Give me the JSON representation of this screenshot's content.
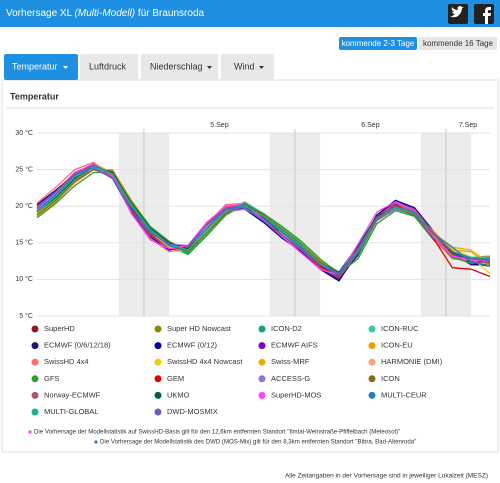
{
  "header": {
    "title": "Vorhersage XL",
    "title_model": "(Multi-Modell)",
    "location": "für Braunsroda"
  },
  "range_buttons": [
    "kommende 2-3 Tage",
    "kommende 16 Tage"
  ],
  "tabs": [
    "Temperatur",
    "Luftdruck",
    "Niederschlag",
    "Wind"
  ],
  "chart_data": {
    "type": "line",
    "title": "Temperatur",
    "x": [
      7,
      10,
      13,
      16,
      19,
      22,
      25,
      28,
      31,
      34,
      37,
      40,
      43,
      46,
      49,
      52,
      55,
      58,
      61,
      64,
      67,
      70,
      73,
      76,
      79
    ],
    "xlim": [
      7,
      79
    ],
    "xticks": [
      {
        "value": 36,
        "label": "5.Sep"
      },
      {
        "value": 60,
        "label": "6.Sep"
      },
      {
        "value": 84,
        "label": "7.Sep"
      }
    ],
    "day_lines": [
      24,
      48,
      72
    ],
    "shaded_ranges": [
      [
        20,
        28
      ],
      [
        44,
        52
      ],
      [
        68,
        76
      ]
    ],
    "ylim": [
      5,
      30
    ],
    "yticks": [
      {
        "value": 30,
        "label": "30 °C"
      },
      {
        "value": 25,
        "label": "25 °C"
      },
      {
        "value": 20,
        "label": "20 °C"
      },
      {
        "value": 15,
        "label": "15 °C"
      },
      {
        "value": 10,
        "label": "10 °C"
      },
      {
        "value": 5,
        "label": "5 °C"
      }
    ],
    "grid": true,
    "legend": "bottom",
    "series": [
      {
        "name": "SuperHD",
        "color": "#8b1a1a",
        "values": [
          19.8,
          21.8,
          24.5,
          25.8,
          24.2,
          19.6,
          16.2,
          14.6,
          14.3,
          17.4,
          19.8,
          20.2,
          18.2,
          16.0,
          14.2,
          11.8,
          10.2,
          13.6,
          18.2,
          20.2,
          19.4,
          15.8,
          13.2,
          12.4,
          12.8
        ]
      },
      {
        "name": "Super HD Nowcast",
        "color": "#8b8b00",
        "values": [
          19.2,
          21.2,
          23.8,
          25.4,
          24.6,
          20.2,
          16.8,
          14.8,
          14.2,
          16.8,
          19.2,
          19.8,
          18.6,
          16.6,
          14.6,
          12.2,
          10.8,
          14.2,
          18.8,
          20.4,
          19.2,
          16.2,
          13.8,
          12.6,
          12.2
        ]
      },
      {
        "name": "ICON-D2",
        "color": "#1aa37a",
        "values": [
          18.8,
          20.8,
          23.5,
          25.2,
          24.8,
          20.4,
          17.0,
          15.0,
          13.6,
          16.4,
          19.0,
          20.4,
          18.8,
          16.8,
          14.8,
          12.4,
          10.4,
          13.2,
          18.0,
          19.8,
          18.6,
          15.4,
          13.0,
          12.8,
          13.0
        ]
      },
      {
        "name": "ICON-RUC",
        "color": "#2ecc9a",
        "values": [
          19.0,
          21.0,
          23.6,
          25.0,
          24.4,
          20.0,
          16.6,
          14.4,
          13.4,
          16.2,
          19.2,
          20.6,
          19.0,
          17.0,
          15.0,
          12.6,
          10.6,
          13.8,
          18.4,
          19.6,
          18.8,
          15.6,
          13.4,
          13.0,
          13.2
        ]
      },
      {
        "name": "ECMWF (0/6/12/18)",
        "color": "#1a1a6b",
        "values": [
          20.0,
          22.0,
          24.2,
          25.6,
          24.0,
          19.4,
          16.0,
          14.2,
          14.4,
          17.6,
          20.0,
          20.0,
          18.0,
          15.8,
          14.0,
          11.6,
          10.0,
          13.4,
          18.6,
          20.6,
          19.6,
          16.4,
          13.6,
          12.0,
          12.0
        ]
      },
      {
        "name": "ECMWF (0/12)",
        "color": "#0000a0",
        "values": [
          20.2,
          22.2,
          24.4,
          25.4,
          23.8,
          19.2,
          15.8,
          14.0,
          14.6,
          17.8,
          19.8,
          19.6,
          17.8,
          15.6,
          13.8,
          11.4,
          9.8,
          13.8,
          18.8,
          20.8,
          19.8,
          16.6,
          13.8,
          12.2,
          11.8
        ]
      },
      {
        "name": "ECMWF AIFS",
        "color": "#7b00d4",
        "values": [
          19.4,
          21.6,
          24.2,
          25.2,
          24.2,
          20.4,
          16.8,
          14.6,
          14.0,
          16.8,
          19.4,
          20.2,
          18.6,
          16.4,
          14.4,
          12.0,
          10.6,
          14.4,
          18.6,
          19.8,
          18.8,
          16.0,
          13.4,
          12.6,
          12.4
        ]
      },
      {
        "name": "ICON-EU",
        "color": "#e8a000",
        "values": [
          18.6,
          20.6,
          23.2,
          25.0,
          25.0,
          20.8,
          17.2,
          15.2,
          14.0,
          16.6,
          19.0,
          20.2,
          18.8,
          16.8,
          14.8,
          12.6,
          11.0,
          13.6,
          18.0,
          19.6,
          19.0,
          16.6,
          14.0,
          13.8,
          11.8
        ]
      },
      {
        "name": "SwissHD 4x4",
        "color": "#ff6a6a",
        "values": [
          20.4,
          22.6,
          25.0,
          26.0,
          24.0,
          19.0,
          15.6,
          13.8,
          14.2,
          17.6,
          20.2,
          20.4,
          18.4,
          16.2,
          14.2,
          12.0,
          10.4,
          14.0,
          18.6,
          20.4,
          19.0,
          15.6,
          12.8,
          12.6,
          13.2
        ]
      },
      {
        "name": "SwissHD 4x4 Nowcast",
        "color": "#f0d000",
        "values": [
          19.6,
          21.8,
          24.4,
          25.6,
          24.4,
          20.0,
          16.4,
          14.4,
          14.2,
          17.2,
          19.6,
          20.0,
          18.4,
          16.4,
          14.4,
          12.0,
          10.6,
          14.2,
          18.4,
          20.0,
          19.0,
          16.2,
          14.2,
          13.0,
          10.8
        ]
      },
      {
        "name": "Swiss-MRF",
        "color": "#f0b000",
        "values": [
          19.0,
          21.4,
          24.0,
          25.8,
          24.6,
          20.2,
          16.6,
          14.6,
          13.8,
          16.6,
          19.4,
          20.2,
          18.6,
          16.6,
          14.6,
          12.2,
          10.8,
          14.4,
          18.6,
          19.8,
          19.2,
          16.4,
          14.4,
          14.0,
          12.2
        ]
      },
      {
        "name": "HARMONIE (DMI)",
        "color": "#ffa07a",
        "values": [
          19.6,
          21.6,
          24.0,
          25.2,
          24.2,
          19.8,
          16.4,
          14.6,
          14.6,
          17.2,
          19.6,
          19.8,
          18.2,
          16.2,
          14.4,
          12.2,
          10.6,
          14.0,
          18.2,
          19.8,
          19.0,
          16.0,
          13.6,
          12.8,
          12.6
        ]
      },
      {
        "name": "GFS",
        "color": "#2e9e2e",
        "values": [
          18.4,
          20.4,
          22.8,
          24.6,
          24.6,
          20.6,
          17.2,
          15.2,
          13.4,
          16.0,
          18.8,
          20.2,
          19.0,
          17.2,
          15.2,
          12.8,
          10.8,
          12.8,
          17.6,
          19.4,
          18.6,
          15.8,
          13.0,
          12.2,
          12.4
        ]
      },
      {
        "name": "GEM",
        "color": "#e00000",
        "values": [
          19.8,
          22.0,
          24.6,
          25.6,
          24.4,
          19.8,
          16.2,
          14.2,
          14.2,
          17.6,
          19.8,
          20.2,
          18.4,
          16.0,
          14.0,
          11.8,
          10.4,
          14.4,
          18.6,
          20.2,
          19.0,
          15.6,
          11.6,
          11.4,
          10.4
        ]
      },
      {
        "name": "ACCESS-G",
        "color": "#9370db",
        "values": [
          19.4,
          21.4,
          23.6,
          25.0,
          24.0,
          20.0,
          16.6,
          14.8,
          14.4,
          17.0,
          19.2,
          19.6,
          18.2,
          16.4,
          14.6,
          12.4,
          10.8,
          14.0,
          18.0,
          19.6,
          18.8,
          16.2,
          13.8,
          12.6,
          12.8
        ]
      },
      {
        "name": "ICON",
        "color": "#8b6914",
        "values": [
          18.8,
          20.8,
          23.4,
          25.0,
          24.8,
          20.4,
          16.8,
          14.8,
          13.8,
          16.4,
          19.0,
          20.4,
          18.8,
          16.8,
          14.8,
          12.4,
          10.6,
          13.6,
          18.2,
          19.8,
          18.8,
          15.8,
          13.4,
          13.0,
          12.8
        ]
      },
      {
        "name": "Norway-ECMWF",
        "color": "#b05070",
        "values": [
          20.0,
          22.0,
          24.4,
          25.6,
          24.0,
          19.4,
          16.0,
          14.2,
          14.4,
          17.6,
          19.8,
          20.0,
          18.0,
          15.8,
          14.0,
          11.6,
          10.2,
          13.6,
          18.4,
          20.4,
          19.6,
          16.4,
          13.8,
          12.4,
          12.2
        ]
      },
      {
        "name": "UKMO",
        "color": "#006040",
        "values": [
          19.2,
          21.2,
          23.8,
          25.4,
          24.6,
          20.4,
          17.0,
          15.0,
          14.2,
          16.8,
          19.4,
          20.0,
          18.4,
          16.4,
          14.4,
          12.2,
          11.0,
          14.6,
          18.6,
          19.8,
          19.0,
          16.2,
          13.6,
          12.8,
          12.8
        ]
      },
      {
        "name": "SuperHD-MOS",
        "color": "#ff40ff",
        "values": [
          19.6,
          21.8,
          24.6,
          25.8,
          24.2,
          19.0,
          15.4,
          14.2,
          14.6,
          17.8,
          20.0,
          20.2,
          18.2,
          15.8,
          13.6,
          11.4,
          10.6,
          14.8,
          19.2,
          20.6,
          19.4,
          15.8,
          13.2,
          12.6,
          12.6
        ]
      },
      {
        "name": "MULTI-CEUR",
        "color": "#2080c0",
        "values": [
          19.4,
          21.6,
          24.2,
          25.6,
          24.4,
          20.0,
          16.6,
          14.6,
          14.0,
          17.0,
          19.6,
          20.2,
          18.6,
          16.4,
          14.4,
          12.0,
          10.6,
          13.8,
          18.4,
          20.0,
          19.2,
          16.2,
          14.4,
          12.4,
          11.8
        ]
      },
      {
        "name": "MULTI-GLOBAL",
        "color": "#20b090",
        "values": [
          19.2,
          21.4,
          24.0,
          25.4,
          24.4,
          20.2,
          16.8,
          14.8,
          14.0,
          16.8,
          19.4,
          20.0,
          18.6,
          16.6,
          14.6,
          12.2,
          10.8,
          14.0,
          18.4,
          19.8,
          19.0,
          16.2,
          13.8,
          13.0,
          12.8
        ]
      },
      {
        "name": "DWD-MOSMIX",
        "color": "#6060c0",
        "values": [
          19.8,
          22.0,
          24.4,
          25.2,
          23.8,
          19.4,
          16.4,
          14.8,
          14.6,
          17.4,
          19.6,
          19.8,
          18.0,
          16.0,
          14.2,
          12.0,
          10.8,
          14.2,
          18.4,
          20.0,
          19.2,
          16.2,
          13.8,
          12.8,
          12.6
        ]
      }
    ]
  },
  "footnotes": [
    "Die Vorhersage der Modellstatistik auf SwissHD-Basis gilt für den 12,6km entfernten Standort \"Ilmtal-Weinstraße-Pfiffelbach (Meteosol)\"",
    "Die Vorhersage der Modellstatistik des DWD (MOS-Mix) gilt für den 8,3km entfernten Standort \"Bibra, Bad-Altenroda\""
  ],
  "footer": "Alle Zeitangaben in der Vorhersage sind in jeweiliger Lokalzeit (MESZ)"
}
